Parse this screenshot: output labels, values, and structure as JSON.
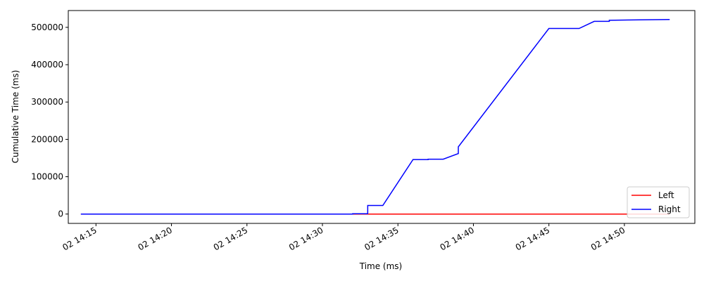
{
  "chart_data": {
    "type": "line",
    "title": "",
    "xlabel": "Time (ms)",
    "ylabel": "Cumulative Time (ms)",
    "x_ticks": [
      {
        "t": "14:15",
        "label": "02 14:15"
      },
      {
        "t": "14:20",
        "label": "02 14:20"
      },
      {
        "t": "14:25",
        "label": "02 14:25"
      },
      {
        "t": "14:30",
        "label": "02 14:30"
      },
      {
        "t": "14:35",
        "label": "02 14:35"
      },
      {
        "t": "14:40",
        "label": "02 14:40"
      },
      {
        "t": "14:45",
        "label": "02 14:45"
      },
      {
        "t": "14:50",
        "label": "02 14:50"
      }
    ],
    "y_ticks": [
      {
        "value": 0,
        "label": "0"
      },
      {
        "value": 100000,
        "label": "100000"
      },
      {
        "value": 200000,
        "label": "200000"
      },
      {
        "value": 300000,
        "label": "300000"
      },
      {
        "value": 400000,
        "label": "400000"
      },
      {
        "value": 500000,
        "label": "500000"
      }
    ],
    "xlim": [
      "14:13:10",
      "14:54:40"
    ],
    "ylim": [
      -25000,
      545000
    ],
    "grid": false,
    "legend_position": "lower right",
    "series": [
      {
        "name": "Left",
        "color": "#ff0000",
        "points": [
          [
            "14:14",
            0
          ],
          [
            "14:53",
            0
          ]
        ]
      },
      {
        "name": "Right",
        "color": "#0000ff",
        "points": [
          [
            "14:14",
            0
          ],
          [
            "14:32",
            0
          ],
          [
            "14:32",
            800
          ],
          [
            "14:33",
            800
          ],
          [
            "14:33",
            23000
          ],
          [
            "14:34",
            23000
          ],
          [
            "14:36",
            146000
          ],
          [
            "14:37",
            146000
          ],
          [
            "14:37",
            147000
          ],
          [
            "14:38",
            147000
          ],
          [
            "14:39",
            162000
          ],
          [
            "14:39",
            180000
          ],
          [
            "14:45",
            497000
          ],
          [
            "14:47",
            497000
          ],
          [
            "14:48",
            516000
          ],
          [
            "14:49",
            516000
          ],
          [
            "14:49",
            519000
          ],
          [
            "14:51",
            520000
          ],
          [
            "14:53",
            521000
          ]
        ]
      }
    ]
  }
}
